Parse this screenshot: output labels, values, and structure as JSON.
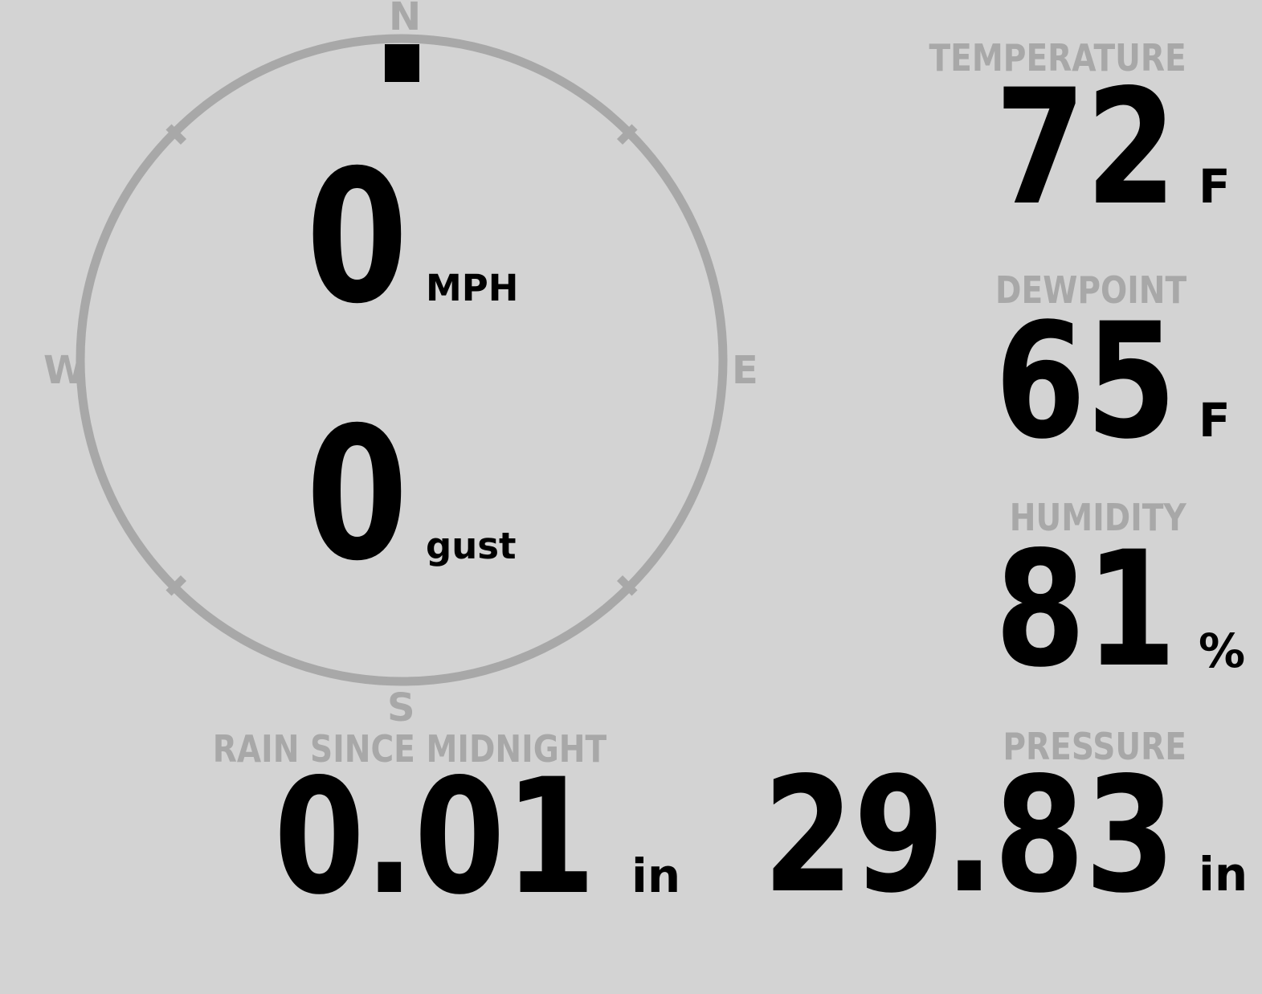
{
  "colors": {
    "background": "#d3d3d3",
    "muted_gray": "#a8a8a8",
    "ink": "#000000"
  },
  "compass": {
    "cardinals": {
      "north": "N",
      "east": "E",
      "south": "S",
      "west": "W"
    },
    "wind_speed_value": "0",
    "wind_speed_unit": "MPH",
    "wind_gust_value": "0",
    "wind_gust_unit": "gust",
    "wind_direction": {
      "label": "N",
      "degrees": 0
    }
  },
  "readings": {
    "temperature": {
      "label": "TEMPERATURE",
      "value": "72",
      "unit": "F"
    },
    "dewpoint": {
      "label": "DEWPOINT",
      "value": "65",
      "unit": "F"
    },
    "humidity": {
      "label": "HUMIDITY",
      "value": "81",
      "unit": "%"
    },
    "rain_since_midnight": {
      "label": "RAIN SINCE MIDNIGHT",
      "value": "0.01",
      "unit": "in"
    },
    "pressure": {
      "label": "PRESSURE",
      "value": "29.83",
      "unit": "in"
    }
  }
}
